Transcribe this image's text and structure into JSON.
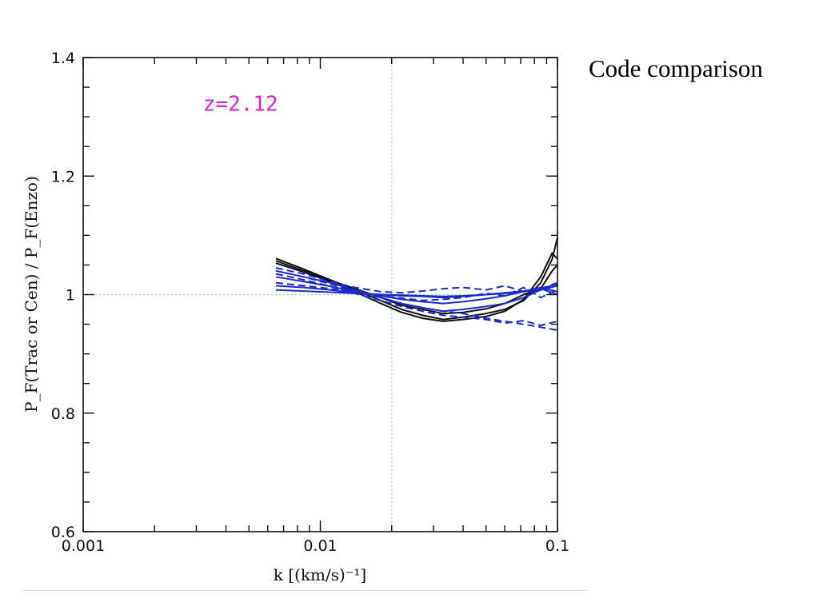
{
  "slide": {
    "side_title": "Code comparison"
  },
  "colors": {
    "black_series": "#111111",
    "blue_series": "#1a2ad0",
    "reference_line": "#8fd6d0",
    "annotation": "#e020c8"
  },
  "chart_data": {
    "type": "line",
    "title": "",
    "xlabel": "k [(km/s)⁻¹]",
    "ylabel": "P_F(Trac or Cen) / P_F(Enzo)",
    "x_scale": "log",
    "xlim": [
      0.001,
      0.1
    ],
    "ylim": [
      0.6,
      1.4
    ],
    "x_ticks": [
      {
        "value": 0.001,
        "label": "0.001"
      },
      {
        "value": 0.01,
        "label": "0.01"
      },
      {
        "value": 0.1,
        "label": "0.1"
      }
    ],
    "y_ticks": [
      {
        "value": 0.6,
        "label": "0.6"
      },
      {
        "value": 0.8,
        "label": "0.8"
      },
      {
        "value": 1.0,
        "label": "1"
      },
      {
        "value": 1.2,
        "label": "1.2"
      },
      {
        "value": 1.4,
        "label": "1.4"
      }
    ],
    "reference_lines": {
      "x": 0.02,
      "y": 1.0
    },
    "annotation": {
      "text": "z=2.12",
      "x": 0.0032,
      "y": 1.31
    },
    "grid": false,
    "series": [
      {
        "style": "solid",
        "color": "black",
        "x": [
          0.0065,
          0.0085,
          0.011,
          0.014,
          0.018,
          0.022,
          0.027,
          0.033,
          0.04,
          0.05,
          0.06,
          0.072,
          0.085,
          0.095,
          0.1
        ],
        "y": [
          1.061,
          1.043,
          1.025,
          1.008,
          0.99,
          0.975,
          0.965,
          0.958,
          0.962,
          0.968,
          0.975,
          0.99,
          1.02,
          1.06,
          1.096
        ]
      },
      {
        "style": "solid",
        "color": "black",
        "x": [
          0.0065,
          0.0085,
          0.011,
          0.014,
          0.018,
          0.022,
          0.027,
          0.033,
          0.04,
          0.05,
          0.06,
          0.072,
          0.085,
          0.095,
          0.1
        ],
        "y": [
          1.053,
          1.038,
          1.022,
          1.005,
          0.985,
          0.97,
          0.96,
          0.955,
          0.958,
          0.963,
          0.972,
          0.992,
          1.03,
          1.07,
          1.06
        ]
      },
      {
        "style": "solid",
        "color": "black",
        "x": [
          0.0065,
          0.0085,
          0.011,
          0.014,
          0.018,
          0.022,
          0.027,
          0.033,
          0.04,
          0.05,
          0.06,
          0.072,
          0.085,
          0.095,
          0.1
        ],
        "y": [
          1.057,
          1.04,
          1.024,
          1.01,
          0.995,
          0.982,
          0.975,
          0.968,
          0.97,
          0.976,
          0.985,
          1.0,
          1.01,
          1.04,
          1.05
        ]
      },
      {
        "style": "solid",
        "color": "blue",
        "x": [
          0.0065,
          0.0085,
          0.011,
          0.014,
          0.018,
          0.022,
          0.027,
          0.033,
          0.04,
          0.05,
          0.06,
          0.072,
          0.085,
          0.1
        ],
        "y": [
          1.04,
          1.03,
          1.02,
          1.008,
          0.995,
          0.985,
          0.978,
          0.972,
          0.975,
          0.98,
          0.985,
          0.995,
          1.008,
          1.015
        ]
      },
      {
        "style": "solid",
        "color": "blue",
        "x": [
          0.0065,
          0.0085,
          0.011,
          0.014,
          0.018,
          0.022,
          0.027,
          0.033,
          0.04,
          0.05,
          0.06,
          0.072,
          0.085,
          0.1
        ],
        "y": [
          1.03,
          1.022,
          1.014,
          1.005,
          0.998,
          0.992,
          0.988,
          0.985,
          0.988,
          0.993,
          0.998,
          1.005,
          1.01,
          1.018
        ]
      },
      {
        "style": "solid",
        "color": "blue",
        "x": [
          0.0065,
          0.0085,
          0.011,
          0.014,
          0.018,
          0.022,
          0.027,
          0.033,
          0.04,
          0.05,
          0.06,
          0.072,
          0.085,
          0.1
        ],
        "y": [
          1.015,
          1.012,
          1.008,
          1.003,
          1.0,
          0.998,
          0.997,
          0.995,
          0.997,
          1.0,
          1.003,
          1.006,
          1.012,
          1.005
        ]
      },
      {
        "style": "solid",
        "color": "blue",
        "x": [
          0.0065,
          0.0085,
          0.011,
          0.014,
          0.018,
          0.022,
          0.027,
          0.033,
          0.04,
          0.05,
          0.06,
          0.072,
          0.085,
          0.1
        ],
        "y": [
          1.008,
          1.006,
          1.004,
          1.002,
          1.0,
          0.999,
          0.998,
          0.997,
          0.998,
          1.0,
          1.002,
          1.005,
          1.01,
          1.0
        ]
      },
      {
        "style": "dashed",
        "color": "blue",
        "x": [
          0.0065,
          0.0085,
          0.011,
          0.014,
          0.018,
          0.022,
          0.027,
          0.033,
          0.04,
          0.05,
          0.06,
          0.072,
          0.085,
          0.1
        ],
        "y": [
          1.045,
          1.035,
          1.022,
          1.012,
          1.005,
          1.003,
          1.006,
          1.01,
          1.012,
          1.008,
          1.015,
          1.005,
          1.01,
          1.02
        ]
      },
      {
        "style": "dashed",
        "color": "blue",
        "x": [
          0.0065,
          0.0085,
          0.011,
          0.014,
          0.018,
          0.022,
          0.027,
          0.033,
          0.04,
          0.05,
          0.06,
          0.072,
          0.085,
          0.1
        ],
        "y": [
          1.04,
          1.03,
          1.018,
          1.005,
          0.995,
          0.985,
          0.978,
          0.972,
          0.968,
          0.96,
          0.955,
          0.95,
          0.945,
          0.94
        ]
      },
      {
        "style": "dashed",
        "color": "blue",
        "x": [
          0.0065,
          0.0085,
          0.011,
          0.014,
          0.018,
          0.022,
          0.027,
          0.033,
          0.04,
          0.05,
          0.06,
          0.072,
          0.085,
          0.1
        ],
        "y": [
          1.035,
          1.025,
          1.014,
          1.002,
          0.99,
          0.98,
          0.972,
          0.965,
          0.962,
          0.958,
          0.952,
          0.956,
          0.948,
          0.955
        ]
      },
      {
        "style": "dashed",
        "color": "blue",
        "x": [
          0.0065,
          0.0085,
          0.011,
          0.014,
          0.018,
          0.022,
          0.027,
          0.033,
          0.04,
          0.05,
          0.06,
          0.072,
          0.085,
          0.1
        ],
        "y": [
          1.02,
          1.015,
          1.01,
          1.004,
          0.998,
          0.994,
          0.99,
          0.992,
          0.995,
          1.002,
          0.998,
          1.012,
          0.995,
          1.008
        ]
      }
    ]
  }
}
